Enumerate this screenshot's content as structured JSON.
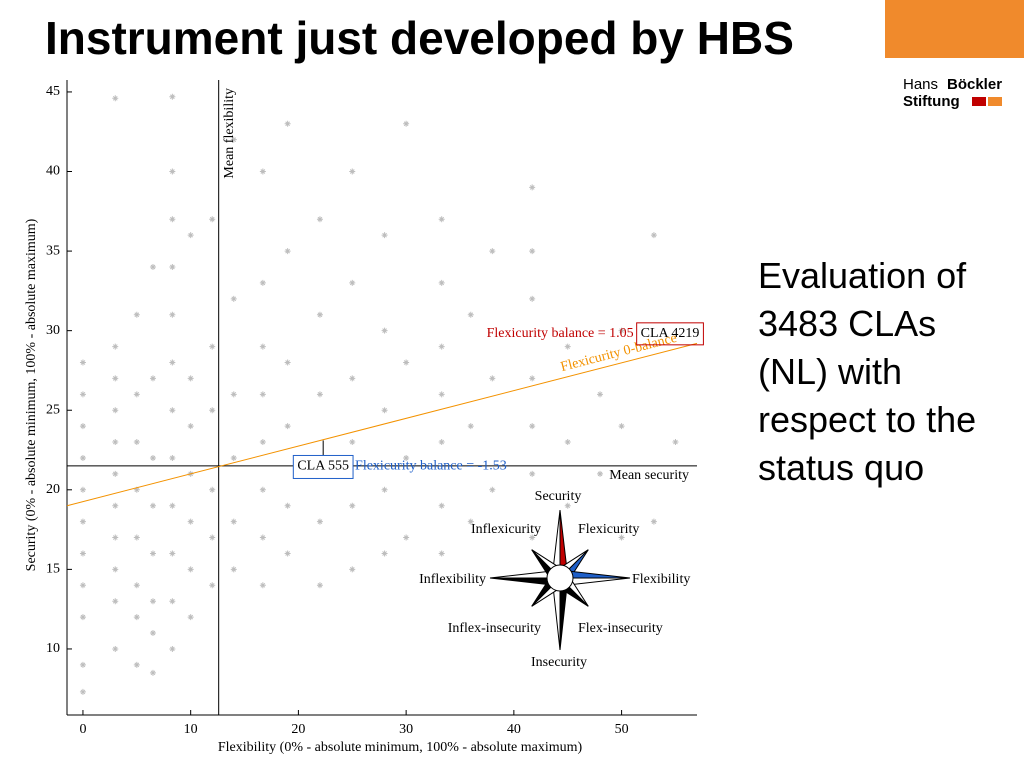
{
  "slide": {
    "title": "Instrument just developed by HBS",
    "logo": [
      "Hans",
      "Böckler",
      "Stiftung"
    ],
    "text": "Evaluation of 3483 CLAs (NL) with respect to the status quo"
  },
  "chart_data": {
    "type": "scatter",
    "xlabel": "Flexibility (0% - absolute minimum, 100% - absolute maximum)",
    "ylabel": "Security (0% - absolute minimum, 100% - absolute maximum)",
    "xlim": [
      -1.48,
      57
    ],
    "ylim": [
      5.85,
      45.75
    ],
    "xticks": [
      0,
      10,
      20,
      30,
      40,
      50
    ],
    "yticks": [
      10,
      15,
      20,
      25,
      30,
      35,
      40,
      45
    ],
    "color": "#bdbdbd",
    "x": [
      0,
      0,
      0,
      0,
      0,
      0,
      0,
      0,
      0,
      0,
      0,
      3,
      3,
      3,
      3,
      3,
      3,
      3,
      3,
      3,
      3,
      3,
      5,
      5,
      5,
      5,
      5,
      5,
      5,
      5,
      6.5,
      6.5,
      6.5,
      6.5,
      6.5,
      6.5,
      6.5,
      6.5,
      8.3,
      8.3,
      8.3,
      8.3,
      8.3,
      8.3,
      8.3,
      8.3,
      8.3,
      8.3,
      8.3,
      8.3,
      10,
      10,
      10,
      10,
      10,
      10,
      10,
      12,
      12,
      12,
      12,
      12,
      12,
      14,
      14,
      14,
      14,
      14,
      14,
      16.7,
      16.7,
      16.7,
      16.7,
      16.7,
      16.7,
      16.7,
      16.7,
      19,
      19,
      19,
      19,
      19,
      19,
      22,
      22,
      22,
      22,
      22,
      22,
      25,
      25,
      25,
      25,
      25,
      25,
      28,
      28,
      28,
      28,
      28,
      30,
      30,
      30,
      30,
      33.3,
      33.3,
      33.3,
      33.3,
      33.3,
      33.3,
      33.3,
      36,
      36,
      36,
      38,
      38,
      38,
      41.7,
      41.7,
      41.7,
      41.7,
      41.7,
      41.7,
      41.7,
      45,
      45,
      45,
      48,
      48,
      50,
      50,
      50,
      53,
      53,
      55
    ],
    "values": [
      9,
      12,
      14,
      16,
      18,
      20,
      22,
      24,
      26,
      28,
      7.3,
      10,
      13,
      15,
      17,
      19,
      21,
      23,
      25,
      27,
      29,
      44.6,
      9,
      12,
      14,
      17,
      20,
      23,
      26,
      31,
      8.5,
      11,
      13,
      16,
      19,
      22,
      27,
      34,
      10,
      13,
      16,
      19,
      22,
      25,
      28,
      31,
      34,
      37,
      40,
      44.7,
      12,
      15,
      18,
      21,
      24,
      27,
      36,
      14,
      17,
      20,
      25,
      29,
      37,
      15,
      18,
      22,
      26,
      32,
      42,
      14,
      17,
      20,
      23,
      26,
      29,
      33,
      40,
      16,
      19,
      24,
      28,
      35,
      43,
      14,
      18,
      21,
      26,
      31,
      37,
      15,
      19,
      23,
      27,
      33,
      40,
      16,
      20,
      25,
      30,
      36,
      17,
      22,
      28,
      43,
      16,
      19,
      23,
      26,
      29,
      33,
      37,
      18,
      24,
      31,
      20,
      27,
      35,
      17,
      21,
      24,
      27,
      32,
      35,
      39,
      19,
      23,
      29,
      21,
      26,
      17,
      24,
      30,
      18,
      36,
      23
    ],
    "mean_lines": {
      "x": 12.6,
      "x_label": "Mean flexibility",
      "y": 21.5,
      "y_label": "Mean security"
    },
    "balance_line": {
      "x": [
        -1.48,
        57
      ],
      "y": [
        19.0,
        29.2
      ],
      "label": "Flexicurity 0-balance",
      "color": "#f39200"
    },
    "highlights": [
      {
        "label": "CLA 4219",
        "note": "Flexicurity balance = 1.05",
        "x": 51.4,
        "y": 29.8,
        "color": "#c00000"
      },
      {
        "label": "CLA 555",
        "note": "Flexicurity balance = -1.53",
        "x": 22.3,
        "y": 23.1,
        "color": "#1f5fc8"
      }
    ],
    "compass": [
      "Security",
      "Flexicurity",
      "Flexibility",
      "Flex-insecurity",
      "Insecurity",
      "Inflex-insecurity",
      "Inflexibility",
      "Inflexicurity"
    ]
  }
}
